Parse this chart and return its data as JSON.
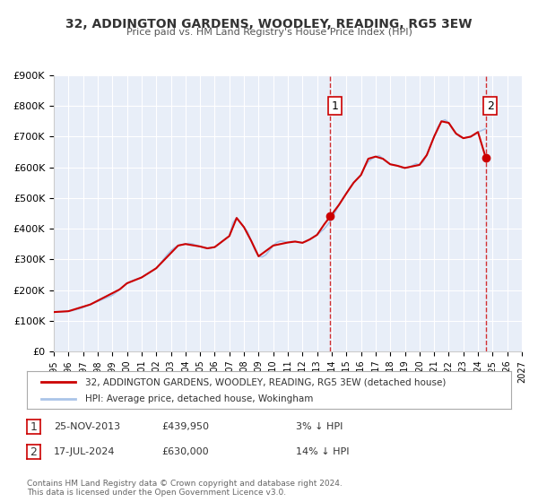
{
  "title": "32, ADDINGTON GARDENS, WOODLEY, READING, RG5 3EW",
  "subtitle": "Price paid vs. HM Land Registry's House Price Index (HPI)",
  "legend_line1": "32, ADDINGTON GARDENS, WOODLEY, READING, RG5 3EW (detached house)",
  "legend_line2": "HPI: Average price, detached house, Wokingham",
  "annotation1_label": "1",
  "annotation1_date": "25-NOV-2013",
  "annotation1_price": "£439,950",
  "annotation1_hpi": "3% ↓ HPI",
  "annotation2_label": "2",
  "annotation2_date": "17-JUL-2024",
  "annotation2_price": "£630,000",
  "annotation2_hpi": "14% ↓ HPI",
  "footer": "Contains HM Land Registry data © Crown copyright and database right 2024.\nThis data is licensed under the Open Government Licence v3.0.",
  "xlim": [
    1995.0,
    2027.0
  ],
  "ylim": [
    0,
    900000
  ],
  "yticks": [
    0,
    100000,
    200000,
    300000,
    400000,
    500000,
    600000,
    700000,
    800000,
    900000
  ],
  "ytick_labels": [
    "£0",
    "£100K",
    "£200K",
    "£300K",
    "£400K",
    "£500K",
    "£600K",
    "£700K",
    "£800K",
    "£900K"
  ],
  "xticks": [
    1995,
    1996,
    1997,
    1998,
    1999,
    2000,
    2001,
    2002,
    2003,
    2004,
    2005,
    2006,
    2007,
    2008,
    2009,
    2010,
    2011,
    2012,
    2013,
    2014,
    2015,
    2016,
    2017,
    2018,
    2019,
    2020,
    2021,
    2022,
    2023,
    2024,
    2025,
    2026,
    2027
  ],
  "vline1_x": 2013.9,
  "vline2_x": 2024.54,
  "sale1_x": 2013.9,
  "sale1_y": 439950,
  "sale2_x": 2024.54,
  "sale2_y": 630000,
  "plot_bg_color": "#e8eef8",
  "grid_color": "#ffffff",
  "hpi_color": "#aac4e8",
  "property_color": "#cc0000",
  "vline_color": "#cc0000",
  "hpi_data_x": [
    1995.0,
    1995.25,
    1995.5,
    1995.75,
    1996.0,
    1996.25,
    1996.5,
    1996.75,
    1997.0,
    1997.25,
    1997.5,
    1997.75,
    1998.0,
    1998.25,
    1998.5,
    1998.75,
    1999.0,
    1999.25,
    1999.5,
    1999.75,
    2000.0,
    2000.25,
    2000.5,
    2000.75,
    2001.0,
    2001.25,
    2001.5,
    2001.75,
    2002.0,
    2002.25,
    2002.5,
    2002.75,
    2003.0,
    2003.25,
    2003.5,
    2003.75,
    2004.0,
    2004.25,
    2004.5,
    2004.75,
    2005.0,
    2005.25,
    2005.5,
    2005.75,
    2006.0,
    2006.25,
    2006.5,
    2006.75,
    2007.0,
    2007.25,
    2007.5,
    2007.75,
    2008.0,
    2008.25,
    2008.5,
    2008.75,
    2009.0,
    2009.25,
    2009.5,
    2009.75,
    2010.0,
    2010.25,
    2010.5,
    2010.75,
    2011.0,
    2011.25,
    2011.5,
    2011.75,
    2012.0,
    2012.25,
    2012.5,
    2012.75,
    2013.0,
    2013.25,
    2013.5,
    2013.75,
    2014.0,
    2014.25,
    2014.5,
    2014.75,
    2015.0,
    2015.25,
    2015.5,
    2015.75,
    2016.0,
    2016.25,
    2016.5,
    2016.75,
    2017.0,
    2017.25,
    2017.5,
    2017.75,
    2018.0,
    2018.25,
    2018.5,
    2018.75,
    2019.0,
    2019.25,
    2019.5,
    2019.75,
    2020.0,
    2020.25,
    2020.5,
    2020.75,
    2021.0,
    2021.25,
    2021.5,
    2021.75,
    2022.0,
    2022.25,
    2022.5,
    2022.75,
    2023.0,
    2023.25,
    2023.5,
    2023.75,
    2024.0,
    2024.25,
    2024.5
  ],
  "hpi_data_y": [
    128000,
    128500,
    129000,
    130000,
    131000,
    133000,
    136000,
    139000,
    143000,
    148000,
    153000,
    158000,
    163000,
    168000,
    173000,
    178000,
    183000,
    192000,
    202000,
    212000,
    222000,
    228000,
    233000,
    237000,
    241000,
    248000,
    255000,
    263000,
    271000,
    285000,
    300000,
    315000,
    328000,
    338000,
    345000,
    348000,
    350000,
    352000,
    350000,
    346000,
    342000,
    338000,
    336000,
    337000,
    340000,
    348000,
    358000,
    368000,
    376000,
    420000,
    435000,
    420000,
    405000,
    390000,
    360000,
    330000,
    310000,
    308000,
    315000,
    330000,
    345000,
    355000,
    360000,
    358000,
    355000,
    358000,
    358000,
    356000,
    354000,
    358000,
    365000,
    372000,
    380000,
    390000,
    400000,
    415000,
    432000,
    455000,
    478000,
    498000,
    515000,
    535000,
    550000,
    562000,
    575000,
    600000,
    618000,
    628000,
    635000,
    638000,
    628000,
    618000,
    610000,
    608000,
    605000,
    600000,
    598000,
    600000,
    605000,
    612000,
    608000,
    618000,
    640000,
    670000,
    700000,
    730000,
    750000,
    755000,
    745000,
    725000,
    710000,
    700000,
    695000,
    698000,
    700000,
    705000,
    715000,
    720000,
    725000
  ],
  "property_data_x": [
    1995.0,
    1995.08,
    1996.0,
    1997.5,
    1999.5,
    2000.0,
    2001.0,
    2002.0,
    2003.5,
    2004.0,
    2005.0,
    2005.5,
    2006.0,
    2006.5,
    2007.0,
    2007.5,
    2008.0,
    2008.5,
    2009.0,
    2010.0,
    2011.0,
    2011.5,
    2012.0,
    2012.5,
    2013.0,
    2013.5,
    2013.9,
    2014.5,
    2015.0,
    2015.5,
    2016.0,
    2016.5,
    2017.0,
    2017.5,
    2018.0,
    2018.5,
    2019.0,
    2020.0,
    2020.5,
    2021.0,
    2021.5,
    2022.0,
    2022.5,
    2023.0,
    2023.5,
    2024.0,
    2024.54
  ],
  "property_data_y": [
    128000,
    128500,
    131000,
    153000,
    202000,
    222000,
    241000,
    271000,
    345000,
    350000,
    342000,
    336000,
    340000,
    358000,
    376000,
    435000,
    405000,
    360000,
    310000,
    345000,
    355000,
    358000,
    354000,
    365000,
    380000,
    415000,
    439950,
    478000,
    515000,
    550000,
    575000,
    628000,
    635000,
    628000,
    610000,
    605000,
    598000,
    608000,
    640000,
    700000,
    750000,
    745000,
    710000,
    695000,
    700000,
    715000,
    630000
  ]
}
